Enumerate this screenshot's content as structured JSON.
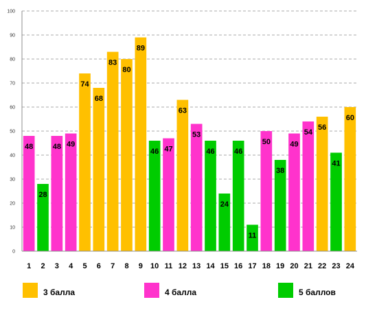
{
  "chart_data": {
    "type": "bar",
    "title": "",
    "xlabel": "",
    "ylabel": "",
    "ylim": [
      0,
      100
    ],
    "yticks": [
      0,
      10,
      20,
      30,
      40,
      50,
      60,
      70,
      80,
      90,
      100
    ],
    "grid": true,
    "legend_position": "bottom",
    "categories": [
      "1",
      "2",
      "3",
      "4",
      "5",
      "6",
      "7",
      "8",
      "9",
      "10",
      "11",
      "12",
      "13",
      "14",
      "15",
      "16",
      "17",
      "18",
      "19",
      "20",
      "21",
      "22",
      "23",
      "24"
    ],
    "values": [
      48,
      28,
      48,
      49,
      74,
      68,
      83,
      80,
      89,
      46,
      47,
      63,
      53,
      46,
      24,
      46,
      11,
      50,
      38,
      49,
      54,
      56,
      41,
      60
    ],
    "groups": [
      "4",
      "5",
      "4",
      "4",
      "3",
      "3",
      "3",
      "3",
      "3",
      "5",
      "4",
      "3",
      "4",
      "5",
      "5",
      "5",
      "5",
      "4",
      "5",
      "4",
      "4",
      "3",
      "5",
      "3"
    ],
    "series": [
      {
        "key": "3",
        "name": "3 балла",
        "color": "#FFC000"
      },
      {
        "key": "4",
        "name": "4 балла",
        "color": "#FF33CC"
      },
      {
        "key": "5",
        "name": "5 баллов",
        "color": "#00CC00"
      }
    ]
  }
}
